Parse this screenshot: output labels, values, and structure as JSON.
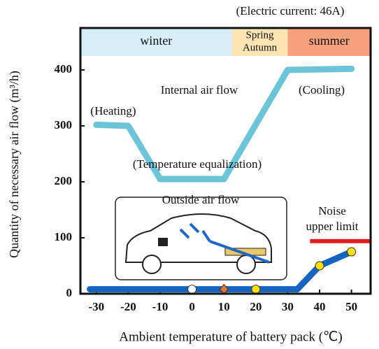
{
  "chart_data": {
    "type": "line",
    "note_top": "(Electric current: 46A)",
    "ylabel": "Quantity of necessary air flow (m³/h)",
    "xlabel": "Ambient temperature of battery pack (℃)",
    "xlim": [
      -35,
      56
    ],
    "ylim": [
      0,
      475
    ],
    "xticks": [
      -30,
      -20,
      -10,
      0,
      10,
      20,
      30,
      40,
      50
    ],
    "yticks": [
      0,
      100,
      200,
      300,
      400
    ],
    "seasons": [
      {
        "label": [
          "winter"
        ],
        "from": -35,
        "to": 12.5,
        "color": "#d8eef6"
      },
      {
        "label": [
          "Spring",
          "Autumn"
        ],
        "from": 12.5,
        "to": 30,
        "color": "#fde4b3"
      },
      {
        "label": [
          "summer"
        ],
        "from": 30,
        "to": 56,
        "color": "#f4a07c"
      }
    ],
    "series": [
      {
        "name": "Internal air flow",
        "color": "#6cc4d8",
        "x": [
          -30,
          -20,
          -10,
          10,
          30,
          50
        ],
        "values": [
          302,
          300,
          205,
          205,
          400,
          402
        ]
      },
      {
        "name": "Outside air flow",
        "color": "#1565c0",
        "x": [
          -32,
          33,
          40,
          50
        ],
        "values": [
          8,
          8,
          50,
          75
        ]
      }
    ],
    "points": [
      {
        "x": 0,
        "y": 8,
        "color": "#ffffff",
        "shape": "circle"
      },
      {
        "x": 10,
        "y": 8,
        "color": "#e8742a",
        "shape": "diamond"
      },
      {
        "x": 20,
        "y": 8,
        "color": "#ffe000",
        "shape": "circle"
      },
      {
        "x": 40,
        "y": 50,
        "color": "#ffe000",
        "shape": "circle"
      },
      {
        "x": 50,
        "y": 75,
        "color": "#ffe000",
        "shape": "circle"
      }
    ],
    "noise_limit": {
      "label": [
        "Noise",
        "upper limit"
      ],
      "from": 37,
      "to": 56,
      "value": 94,
      "color": "#e02020"
    },
    "annotations": [
      "(Heating)",
      "(Cooling)",
      "(Temperature equalization)"
    ]
  }
}
